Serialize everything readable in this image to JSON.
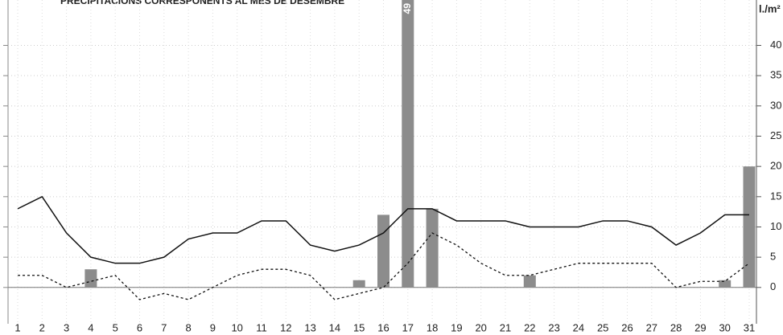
{
  "chart_data": {
    "type": "bar-line",
    "title": "PRECIPITACIONS CORRESPONENTS AL MES DE DESEMBRE",
    "y_label": "l./m²",
    "categories": [
      "1",
      "2",
      "3",
      "4",
      "5",
      "6",
      "7",
      "8",
      "9",
      "10",
      "11",
      "12",
      "13",
      "14",
      "15",
      "16",
      "17",
      "18",
      "19",
      "20",
      "21",
      "22",
      "23",
      "24",
      "25",
      "26",
      "27",
      "28",
      "29",
      "30",
      "31"
    ],
    "series": [
      {
        "type": "bar",
        "color": "#8c8c8c",
        "values": [
          0,
          0,
          0,
          3,
          0,
          0,
          0,
          0,
          0,
          0,
          0,
          0,
          0,
          0,
          1.2,
          12,
          49,
          13,
          0,
          0,
          0,
          2,
          0,
          0,
          0,
          0,
          0,
          0,
          0,
          1.2,
          20
        ]
      },
      {
        "type": "line",
        "color": "#111111",
        "dash": false,
        "values": [
          13,
          15,
          9,
          5,
          4,
          4,
          5,
          8,
          9,
          9,
          11,
          11,
          7,
          6,
          7,
          9,
          13,
          13,
          11,
          11,
          11,
          10,
          10,
          10,
          11,
          11,
          10,
          7,
          9,
          12,
          12
        ]
      },
      {
        "type": "line",
        "color": "#111111",
        "dash": true,
        "values": [
          2,
          2,
          0,
          1,
          2,
          -2,
          -1,
          -2,
          0,
          2,
          3,
          3,
          2,
          -2,
          -1,
          0,
          4,
          9,
          7,
          4,
          2,
          2,
          3,
          4,
          4,
          4,
          4,
          0,
          1,
          1,
          4
        ]
      }
    ],
    "ylim": [
      -6,
      47.5
    ],
    "yticks": [
      0,
      5,
      10,
      15,
      20,
      25,
      30,
      35,
      40
    ],
    "grid": true
  }
}
